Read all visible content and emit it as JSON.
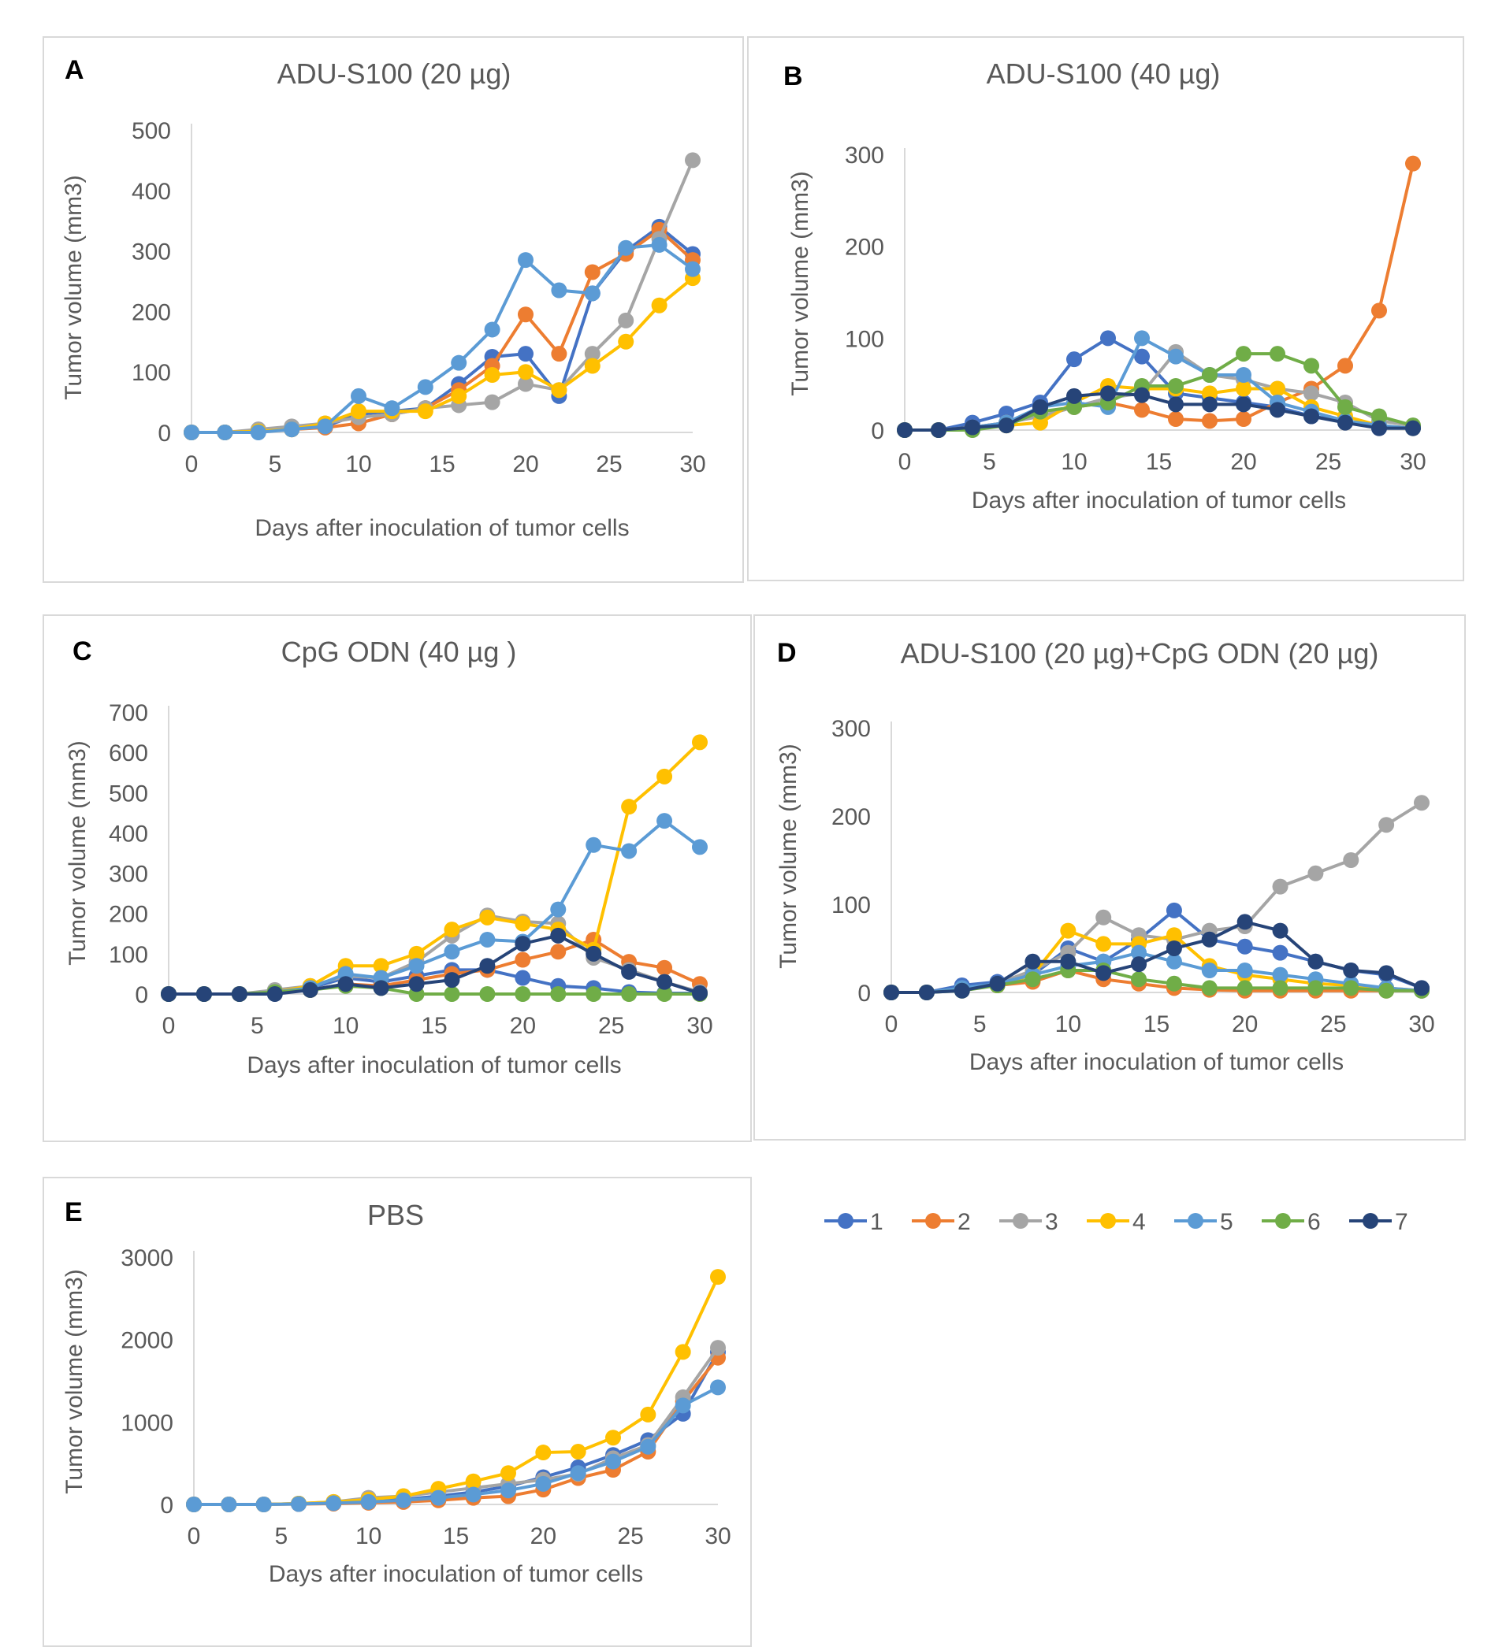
{
  "chart_data": [
    {
      "type": "line",
      "panel_label": "A",
      "title": "ADU-S100 (20 µg)",
      "xlabel": "Days after inoculation of tumor cells",
      "ylabel": "Tumor volume (mm3)",
      "xlim": [
        0,
        30
      ],
      "ylim": [
        0,
        500
      ],
      "xticks": [
        0,
        5,
        10,
        15,
        20,
        25,
        30
      ],
      "yticks": [
        0,
        100,
        200,
        300,
        400,
        500
      ],
      "x": [
        0,
        2,
        4,
        6,
        8,
        10,
        12,
        14,
        16,
        18,
        20,
        22,
        24,
        26,
        28,
        30
      ],
      "series": [
        {
          "name": "1",
          "values": [
            0,
            0,
            2,
            5,
            10,
            30,
            35,
            40,
            80,
            125,
            130,
            60,
            230,
            300,
            340,
            295
          ]
        },
        {
          "name": "2",
          "values": [
            0,
            0,
            2,
            5,
            8,
            15,
            30,
            40,
            70,
            110,
            195,
            130,
            265,
            295,
            335,
            285
          ]
        },
        {
          "name": "3",
          "values": [
            0,
            0,
            5,
            10,
            15,
            25,
            30,
            40,
            45,
            50,
            80,
            70,
            130,
            185,
            320,
            450
          ]
        },
        {
          "name": "4",
          "values": [
            0,
            0,
            2,
            5,
            15,
            35,
            35,
            35,
            60,
            95,
            100,
            70,
            110,
            150,
            210,
            255
          ]
        },
        {
          "name": "5",
          "values": [
            0,
            0,
            0,
            5,
            10,
            60,
            40,
            75,
            115,
            170,
            285,
            235,
            230,
            305,
            310,
            270
          ]
        }
      ]
    },
    {
      "type": "line",
      "panel_label": "B",
      "title": "ADU-S100 (40 µg)",
      "xlabel": "Days after inoculation of tumor cells",
      "ylabel": "Tumor volume (mm3)",
      "xlim": [
        0,
        30
      ],
      "ylim": [
        0,
        300
      ],
      "xticks": [
        0,
        5,
        10,
        15,
        20,
        25,
        30
      ],
      "yticks": [
        0,
        100,
        200,
        300
      ],
      "x": [
        0,
        2,
        4,
        6,
        8,
        10,
        12,
        14,
        16,
        18,
        20,
        22,
        24,
        26,
        28,
        30
      ],
      "series": [
        {
          "name": "1",
          "values": [
            0,
            0,
            8,
            18,
            30,
            77,
            100,
            80,
            40,
            35,
            30,
            25,
            15,
            10,
            2,
            2
          ]
        },
        {
          "name": "2",
          "values": [
            0,
            0,
            3,
            8,
            15,
            25,
            30,
            22,
            12,
            10,
            12,
            30,
            45,
            70,
            130,
            290
          ]
        },
        {
          "name": "3",
          "values": [
            0,
            0,
            3,
            8,
            15,
            25,
            35,
            40,
            85,
            60,
            55,
            45,
            40,
            30,
            10,
            5
          ]
        },
        {
          "name": "4",
          "values": [
            0,
            0,
            2,
            5,
            8,
            30,
            48,
            45,
            45,
            40,
            45,
            45,
            25,
            15,
            5,
            2
          ]
        },
        {
          "name": "5",
          "values": [
            0,
            0,
            3,
            8,
            25,
            30,
            25,
            100,
            80,
            60,
            60,
            30,
            20,
            10,
            5,
            2
          ]
        },
        {
          "name": "6",
          "values": [
            0,
            0,
            0,
            5,
            20,
            25,
            30,
            48,
            48,
            60,
            83,
            83,
            70,
            25,
            15,
            5
          ]
        },
        {
          "name": "7",
          "values": [
            0,
            0,
            3,
            5,
            25,
            37,
            40,
            38,
            28,
            28,
            28,
            22,
            15,
            8,
            2,
            2
          ]
        }
      ]
    },
    {
      "type": "line",
      "panel_label": "C",
      "title": "CpG ODN (40 µg )",
      "xlabel": "Days after inoculation of tumor cells",
      "ylabel": "Tumor volume (mm3)",
      "xlim": [
        0,
        30
      ],
      "ylim": [
        0,
        700
      ],
      "xticks": [
        0,
        5,
        10,
        15,
        20,
        25,
        30
      ],
      "yticks": [
        0,
        100,
        200,
        300,
        400,
        500,
        600,
        700
      ],
      "x": [
        0,
        2,
        4,
        6,
        8,
        10,
        12,
        14,
        16,
        18,
        20,
        22,
        24,
        26,
        28,
        30
      ],
      "series": [
        {
          "name": "1",
          "values": [
            0,
            0,
            0,
            5,
            15,
            40,
            30,
            45,
            60,
            60,
            40,
            20,
            15,
            5,
            2,
            2
          ]
        },
        {
          "name": "2",
          "values": [
            0,
            0,
            0,
            5,
            10,
            25,
            20,
            35,
            50,
            60,
            85,
            105,
            135,
            80,
            65,
            25
          ]
        },
        {
          "name": "3",
          "values": [
            0,
            0,
            0,
            10,
            20,
            45,
            40,
            80,
            145,
            195,
            180,
            175,
            90,
            60,
            30,
            5
          ]
        },
        {
          "name": "4",
          "values": [
            0,
            0,
            0,
            5,
            20,
            70,
            70,
            100,
            160,
            190,
            175,
            160,
            110,
            465,
            540,
            625
          ]
        },
        {
          "name": "5",
          "values": [
            0,
            0,
            0,
            5,
            15,
            50,
            40,
            70,
            105,
            135,
            130,
            210,
            370,
            355,
            430,
            365
          ]
        },
        {
          "name": "6",
          "values": [
            0,
            0,
            0,
            5,
            10,
            20,
            15,
            0,
            0,
            0,
            0,
            0,
            0,
            0,
            0,
            0
          ]
        },
        {
          "name": "7",
          "values": [
            0,
            0,
            0,
            0,
            10,
            25,
            15,
            25,
            35,
            70,
            125,
            145,
            100,
            55,
            30,
            2
          ]
        }
      ]
    },
    {
      "type": "line",
      "panel_label": "D",
      "title": "ADU-S100 (20 µg)+CpG ODN (20 µg)",
      "xlabel": "Days after inoculation of tumor cells",
      "ylabel": "Tumor volume (mm3)",
      "xlim": [
        0,
        30
      ],
      "ylim": [
        0,
        300
      ],
      "xticks": [
        0,
        5,
        10,
        15,
        20,
        25,
        30
      ],
      "yticks": [
        0,
        100,
        200,
        300
      ],
      "x": [
        0,
        2,
        4,
        6,
        8,
        10,
        12,
        14,
        16,
        18,
        20,
        22,
        24,
        26,
        28,
        30
      ],
      "series": [
        {
          "name": "1",
          "values": [
            0,
            0,
            8,
            12,
            20,
            50,
            35,
            60,
            93,
            60,
            52,
            45,
            35,
            25,
            20,
            5
          ]
        },
        {
          "name": "2",
          "values": [
            0,
            0,
            3,
            8,
            12,
            25,
            15,
            10,
            5,
            3,
            2,
            2,
            2,
            2,
            2,
            2
          ]
        },
        {
          "name": "3",
          "values": [
            0,
            0,
            3,
            10,
            25,
            45,
            85,
            65,
            60,
            70,
            75,
            120,
            135,
            150,
            190,
            215
          ]
        },
        {
          "name": "4",
          "values": [
            0,
            0,
            3,
            8,
            20,
            70,
            55,
            55,
            65,
            30,
            20,
            15,
            10,
            8,
            5,
            2
          ]
        },
        {
          "name": "5",
          "values": [
            0,
            0,
            5,
            10,
            20,
            30,
            35,
            45,
            35,
            25,
            25,
            20,
            15,
            10,
            5,
            2
          ]
        },
        {
          "name": "6",
          "values": [
            0,
            0,
            2,
            8,
            15,
            25,
            25,
            15,
            10,
            5,
            5,
            5,
            5,
            5,
            2,
            2
          ]
        },
        {
          "name": "7",
          "values": [
            0,
            0,
            2,
            10,
            35,
            35,
            22,
            32,
            50,
            60,
            80,
            70,
            35,
            25,
            22,
            5
          ]
        }
      ]
    },
    {
      "type": "line",
      "panel_label": "E",
      "title": "PBS",
      "xlabel": "Days after inoculation of tumor cells",
      "ylabel": "Tumor volume (mm3)",
      "xlim": [
        0,
        30
      ],
      "ylim": [
        0,
        3000
      ],
      "xticks": [
        0,
        5,
        10,
        15,
        20,
        25,
        30
      ],
      "yticks": [
        0,
        1000,
        2000,
        3000
      ],
      "x": [
        0,
        2,
        4,
        6,
        8,
        10,
        12,
        14,
        16,
        18,
        20,
        22,
        24,
        26,
        28,
        30
      ],
      "series": [
        {
          "name": "1",
          "values": [
            0,
            0,
            0,
            10,
            20,
            40,
            60,
            100,
            150,
            220,
            330,
            450,
            600,
            780,
            1100,
            1850
          ]
        },
        {
          "name": "2",
          "values": [
            0,
            0,
            0,
            5,
            10,
            20,
            30,
            50,
            80,
            100,
            180,
            320,
            420,
            640,
            1250,
            1780
          ]
        },
        {
          "name": "3",
          "values": [
            0,
            0,
            0,
            10,
            30,
            80,
            100,
            150,
            200,
            250,
            300,
            370,
            560,
            720,
            1300,
            1900
          ]
        },
        {
          "name": "4",
          "values": [
            0,
            0,
            0,
            10,
            30,
            60,
            100,
            190,
            280,
            380,
            630,
            640,
            810,
            1090,
            1850,
            2760
          ]
        },
        {
          "name": "5",
          "values": [
            0,
            0,
            0,
            5,
            15,
            30,
            50,
            80,
            120,
            170,
            250,
            380,
            520,
            700,
            1200,
            1420
          ]
        }
      ]
    }
  ],
  "legend": {
    "items": [
      {
        "label": "1",
        "color": "#4472C4"
      },
      {
        "label": "2",
        "color": "#ED7D31"
      },
      {
        "label": "3",
        "color": "#A5A5A5"
      },
      {
        "label": "4",
        "color": "#FFC000"
      },
      {
        "label": "5",
        "color": "#5B9BD5"
      },
      {
        "label": "6",
        "color": "#70AD47"
      },
      {
        "label": "7",
        "color": "#264478"
      }
    ]
  },
  "colors": {
    "1": "#4472C4",
    "2": "#ED7D31",
    "3": "#A5A5A5",
    "4": "#FFC000",
    "5": "#5B9BD5",
    "6": "#70AD47",
    "7": "#264478"
  }
}
